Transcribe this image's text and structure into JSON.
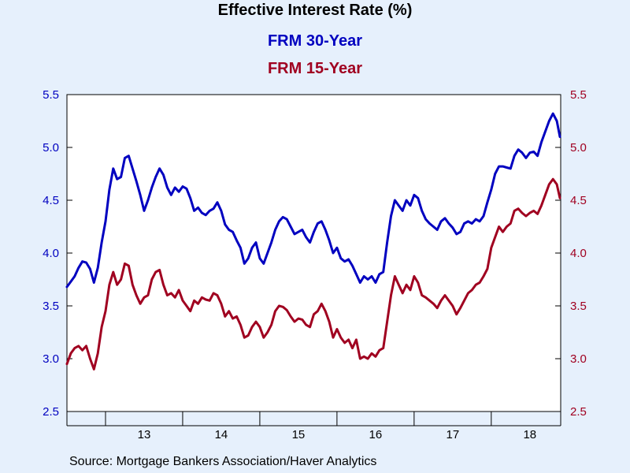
{
  "colors": {
    "background": "#e6f0fc",
    "plot_bg": "#ffffff",
    "frm30": "#0000c0",
    "frm15": "#a00020"
  },
  "header": {
    "title": "Effective Interest Rate (%)",
    "series1_label": "FRM 30-Year",
    "series2_label": "FRM 15-Year"
  },
  "footer": {
    "source": "Source:  Mortgage Bankers Association/Haver Analytics"
  },
  "chart_data": {
    "type": "line",
    "title": "Effective Interest Rate (%)",
    "y_left": {
      "min": 2.5,
      "max": 5.5,
      "ticks": [
        "2.5",
        "3.0",
        "3.5",
        "4.0",
        "4.5",
        "5.0",
        "5.5"
      ],
      "color": "#0000c0"
    },
    "y_right": {
      "min": 2.5,
      "max": 5.5,
      "ticks": [
        "2.5",
        "3.0",
        "3.5",
        "4.0",
        "4.5",
        "5.0",
        "5.5"
      ],
      "color": "#a00020"
    },
    "x_axis": {
      "min": 2012.5,
      "max": 2018.9,
      "year_boundaries": [
        2013,
        2014,
        2015,
        2016,
        2017,
        2018
      ],
      "labels": [
        {
          "x": 2013.5,
          "text": "13"
        },
        {
          "x": 2014.5,
          "text": "14"
        },
        {
          "x": 2015.5,
          "text": "15"
        },
        {
          "x": 2016.5,
          "text": "16"
        },
        {
          "x": 2017.5,
          "text": "17"
        },
        {
          "x": 2018.5,
          "text": "18"
        }
      ]
    },
    "grid": false,
    "series": [
      {
        "name": "FRM 30-Year",
        "axis": "left",
        "color": "#0000c0",
        "points": [
          [
            2012.5,
            3.68
          ],
          [
            2012.55,
            3.73
          ],
          [
            2012.6,
            3.78
          ],
          [
            2012.65,
            3.86
          ],
          [
            2012.7,
            3.92
          ],
          [
            2012.75,
            3.91
          ],
          [
            2012.8,
            3.85
          ],
          [
            2012.85,
            3.72
          ],
          [
            2012.9,
            3.86
          ],
          [
            2012.95,
            4.1
          ],
          [
            2013.0,
            4.3
          ],
          [
            2013.05,
            4.6
          ],
          [
            2013.1,
            4.8
          ],
          [
            2013.15,
            4.7
          ],
          [
            2013.2,
            4.72
          ],
          [
            2013.25,
            4.9
          ],
          [
            2013.3,
            4.92
          ],
          [
            2013.35,
            4.8
          ],
          [
            2013.4,
            4.68
          ],
          [
            2013.45,
            4.55
          ],
          [
            2013.5,
            4.4
          ],
          [
            2013.55,
            4.5
          ],
          [
            2013.6,
            4.62
          ],
          [
            2013.65,
            4.72
          ],
          [
            2013.7,
            4.8
          ],
          [
            2013.75,
            4.74
          ],
          [
            2013.8,
            4.62
          ],
          [
            2013.85,
            4.55
          ],
          [
            2013.9,
            4.62
          ],
          [
            2013.95,
            4.58
          ],
          [
            2014.0,
            4.63
          ],
          [
            2014.05,
            4.61
          ],
          [
            2014.1,
            4.52
          ],
          [
            2014.15,
            4.4
          ],
          [
            2014.2,
            4.43
          ],
          [
            2014.25,
            4.38
          ],
          [
            2014.3,
            4.36
          ],
          [
            2014.35,
            4.4
          ],
          [
            2014.4,
            4.42
          ],
          [
            2014.45,
            4.48
          ],
          [
            2014.5,
            4.4
          ],
          [
            2014.55,
            4.27
          ],
          [
            2014.6,
            4.22
          ],
          [
            2014.65,
            4.2
          ],
          [
            2014.7,
            4.12
          ],
          [
            2014.75,
            4.05
          ],
          [
            2014.8,
            3.9
          ],
          [
            2014.85,
            3.95
          ],
          [
            2014.9,
            4.05
          ],
          [
            2014.95,
            4.1
          ],
          [
            2015.0,
            3.95
          ],
          [
            2015.05,
            3.9
          ],
          [
            2015.1,
            4.0
          ],
          [
            2015.15,
            4.1
          ],
          [
            2015.2,
            4.22
          ],
          [
            2015.25,
            4.3
          ],
          [
            2015.3,
            4.34
          ],
          [
            2015.35,
            4.32
          ],
          [
            2015.4,
            4.25
          ],
          [
            2015.45,
            4.18
          ],
          [
            2015.5,
            4.2
          ],
          [
            2015.55,
            4.22
          ],
          [
            2015.6,
            4.15
          ],
          [
            2015.65,
            4.1
          ],
          [
            2015.7,
            4.2
          ],
          [
            2015.75,
            4.28
          ],
          [
            2015.8,
            4.3
          ],
          [
            2015.85,
            4.22
          ],
          [
            2015.9,
            4.12
          ],
          [
            2015.95,
            4.0
          ],
          [
            2016.0,
            4.05
          ],
          [
            2016.05,
            3.95
          ],
          [
            2016.1,
            3.92
          ],
          [
            2016.15,
            3.94
          ],
          [
            2016.2,
            3.88
          ],
          [
            2016.25,
            3.8
          ],
          [
            2016.3,
            3.72
          ],
          [
            2016.35,
            3.78
          ],
          [
            2016.4,
            3.75
          ],
          [
            2016.45,
            3.78
          ],
          [
            2016.5,
            3.72
          ],
          [
            2016.55,
            3.8
          ],
          [
            2016.6,
            3.82
          ],
          [
            2016.65,
            4.1
          ],
          [
            2016.7,
            4.35
          ],
          [
            2016.75,
            4.5
          ],
          [
            2016.8,
            4.45
          ],
          [
            2016.85,
            4.4
          ],
          [
            2016.9,
            4.5
          ],
          [
            2016.95,
            4.45
          ],
          [
            2017.0,
            4.55
          ],
          [
            2017.05,
            4.52
          ],
          [
            2017.1,
            4.4
          ],
          [
            2017.15,
            4.32
          ],
          [
            2017.2,
            4.28
          ],
          [
            2017.25,
            4.25
          ],
          [
            2017.3,
            4.22
          ],
          [
            2017.35,
            4.3
          ],
          [
            2017.4,
            4.33
          ],
          [
            2017.45,
            4.28
          ],
          [
            2017.5,
            4.24
          ],
          [
            2017.55,
            4.18
          ],
          [
            2017.6,
            4.2
          ],
          [
            2017.65,
            4.28
          ],
          [
            2017.7,
            4.3
          ],
          [
            2017.75,
            4.28
          ],
          [
            2017.8,
            4.32
          ],
          [
            2017.85,
            4.3
          ],
          [
            2017.9,
            4.35
          ],
          [
            2017.95,
            4.48
          ],
          [
            2018.0,
            4.6
          ],
          [
            2018.05,
            4.75
          ],
          [
            2018.1,
            4.82
          ],
          [
            2018.15,
            4.82
          ],
          [
            2018.2,
            4.81
          ],
          [
            2018.25,
            4.8
          ],
          [
            2018.3,
            4.92
          ],
          [
            2018.35,
            4.98
          ],
          [
            2018.4,
            4.95
          ],
          [
            2018.45,
            4.9
          ],
          [
            2018.5,
            4.95
          ],
          [
            2018.55,
            4.96
          ],
          [
            2018.6,
            4.92
          ],
          [
            2018.65,
            5.05
          ],
          [
            2018.7,
            5.15
          ],
          [
            2018.75,
            5.25
          ],
          [
            2018.8,
            5.32
          ],
          [
            2018.85,
            5.25
          ],
          [
            2018.89,
            5.1
          ]
        ]
      },
      {
        "name": "FRM 15-Year",
        "axis": "right",
        "color": "#a00020",
        "points": [
          [
            2012.5,
            2.95
          ],
          [
            2012.55,
            3.05
          ],
          [
            2012.6,
            3.1
          ],
          [
            2012.65,
            3.12
          ],
          [
            2012.7,
            3.08
          ],
          [
            2012.75,
            3.12
          ],
          [
            2012.8,
            3.0
          ],
          [
            2012.85,
            2.9
          ],
          [
            2012.9,
            3.05
          ],
          [
            2012.95,
            3.3
          ],
          [
            2013.0,
            3.45
          ],
          [
            2013.05,
            3.7
          ],
          [
            2013.1,
            3.82
          ],
          [
            2013.15,
            3.7
          ],
          [
            2013.2,
            3.75
          ],
          [
            2013.25,
            3.9
          ],
          [
            2013.3,
            3.88
          ],
          [
            2013.35,
            3.7
          ],
          [
            2013.4,
            3.6
          ],
          [
            2013.45,
            3.52
          ],
          [
            2013.5,
            3.58
          ],
          [
            2013.55,
            3.6
          ],
          [
            2013.6,
            3.75
          ],
          [
            2013.65,
            3.82
          ],
          [
            2013.7,
            3.84
          ],
          [
            2013.75,
            3.7
          ],
          [
            2013.8,
            3.6
          ],
          [
            2013.85,
            3.62
          ],
          [
            2013.9,
            3.58
          ],
          [
            2013.95,
            3.65
          ],
          [
            2014.0,
            3.55
          ],
          [
            2014.05,
            3.5
          ],
          [
            2014.1,
            3.45
          ],
          [
            2014.15,
            3.55
          ],
          [
            2014.2,
            3.52
          ],
          [
            2014.25,
            3.58
          ],
          [
            2014.3,
            3.56
          ],
          [
            2014.35,
            3.55
          ],
          [
            2014.4,
            3.62
          ],
          [
            2014.45,
            3.6
          ],
          [
            2014.5,
            3.52
          ],
          [
            2014.55,
            3.4
          ],
          [
            2014.6,
            3.45
          ],
          [
            2014.65,
            3.38
          ],
          [
            2014.7,
            3.4
          ],
          [
            2014.75,
            3.32
          ],
          [
            2014.8,
            3.2
          ],
          [
            2014.85,
            3.22
          ],
          [
            2014.9,
            3.3
          ],
          [
            2014.95,
            3.35
          ],
          [
            2015.0,
            3.3
          ],
          [
            2015.05,
            3.2
          ],
          [
            2015.1,
            3.25
          ],
          [
            2015.15,
            3.32
          ],
          [
            2015.2,
            3.45
          ],
          [
            2015.25,
            3.5
          ],
          [
            2015.3,
            3.49
          ],
          [
            2015.35,
            3.46
          ],
          [
            2015.4,
            3.4
          ],
          [
            2015.45,
            3.35
          ],
          [
            2015.5,
            3.38
          ],
          [
            2015.55,
            3.37
          ],
          [
            2015.6,
            3.32
          ],
          [
            2015.65,
            3.3
          ],
          [
            2015.7,
            3.42
          ],
          [
            2015.75,
            3.45
          ],
          [
            2015.8,
            3.52
          ],
          [
            2015.85,
            3.45
          ],
          [
            2015.9,
            3.35
          ],
          [
            2015.95,
            3.2
          ],
          [
            2016.0,
            3.28
          ],
          [
            2016.05,
            3.2
          ],
          [
            2016.1,
            3.15
          ],
          [
            2016.15,
            3.18
          ],
          [
            2016.2,
            3.1
          ],
          [
            2016.25,
            3.18
          ],
          [
            2016.3,
            3.0
          ],
          [
            2016.35,
            3.02
          ],
          [
            2016.4,
            3.0
          ],
          [
            2016.45,
            3.05
          ],
          [
            2016.5,
            3.02
          ],
          [
            2016.55,
            3.08
          ],
          [
            2016.6,
            3.1
          ],
          [
            2016.65,
            3.35
          ],
          [
            2016.7,
            3.6
          ],
          [
            2016.75,
            3.78
          ],
          [
            2016.8,
            3.7
          ],
          [
            2016.85,
            3.62
          ],
          [
            2016.9,
            3.7
          ],
          [
            2016.95,
            3.65
          ],
          [
            2017.0,
            3.78
          ],
          [
            2017.05,
            3.72
          ],
          [
            2017.1,
            3.6
          ],
          [
            2017.15,
            3.58
          ],
          [
            2017.2,
            3.55
          ],
          [
            2017.25,
            3.52
          ],
          [
            2017.3,
            3.48
          ],
          [
            2017.35,
            3.55
          ],
          [
            2017.4,
            3.6
          ],
          [
            2017.45,
            3.55
          ],
          [
            2017.5,
            3.5
          ],
          [
            2017.55,
            3.42
          ],
          [
            2017.6,
            3.48
          ],
          [
            2017.65,
            3.55
          ],
          [
            2017.7,
            3.62
          ],
          [
            2017.75,
            3.65
          ],
          [
            2017.8,
            3.7
          ],
          [
            2017.85,
            3.72
          ],
          [
            2017.9,
            3.78
          ],
          [
            2017.95,
            3.85
          ],
          [
            2018.0,
            4.05
          ],
          [
            2018.05,
            4.15
          ],
          [
            2018.1,
            4.25
          ],
          [
            2018.15,
            4.2
          ],
          [
            2018.2,
            4.25
          ],
          [
            2018.25,
            4.28
          ],
          [
            2018.3,
            4.4
          ],
          [
            2018.35,
            4.42
          ],
          [
            2018.4,
            4.38
          ],
          [
            2018.45,
            4.35
          ],
          [
            2018.5,
            4.38
          ],
          [
            2018.55,
            4.4
          ],
          [
            2018.6,
            4.37
          ],
          [
            2018.65,
            4.45
          ],
          [
            2018.7,
            4.55
          ],
          [
            2018.75,
            4.65
          ],
          [
            2018.8,
            4.7
          ],
          [
            2018.85,
            4.65
          ],
          [
            2018.89,
            4.52
          ]
        ]
      }
    ]
  }
}
